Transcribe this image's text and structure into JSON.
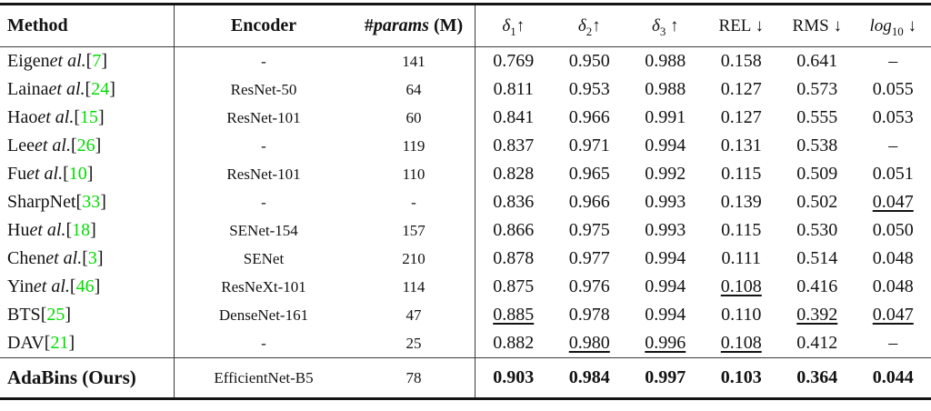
{
  "punct": {
    "open": "[",
    "close": "]"
  },
  "colors": {
    "citation_green": "#00dd00",
    "text": "#121212",
    "rule": "#141414"
  },
  "header": {
    "method": "Method",
    "encoder": "Encoder",
    "params_hash": "#",
    "params_word": "params",
    "params_unit": "(M)",
    "delta_sym": "δ",
    "delta_subs": [
      "1",
      "2",
      "3"
    ],
    "up_arrow": "↑",
    "down_arrow": "↓",
    "rel": "REL",
    "rms": "RMS",
    "log_word": "log",
    "log_sub": "10"
  },
  "rows": [
    {
      "method": {
        "prefix": "Eigen",
        "etal": "et al.",
        "cite": "7"
      },
      "encoder": "-",
      "params": "141",
      "d1": "0.769",
      "d2": "0.950",
      "d3": "0.988",
      "rel": "0.158",
      "rms": "0.641",
      "log10": "–"
    },
    {
      "method": {
        "prefix": "Laina",
        "etal": "et al.",
        "cite": "24"
      },
      "encoder": "ResNet-50",
      "params": "64",
      "d1": "0.811",
      "d2": "0.953",
      "d3": "0.988",
      "rel": "0.127",
      "rms": "0.573",
      "log10": "0.055"
    },
    {
      "method": {
        "prefix": "Hao",
        "etal": "et al.",
        "cite": "15"
      },
      "encoder": "ResNet-101",
      "params": "60",
      "d1": "0.841",
      "d2": "0.966",
      "d3": "0.991",
      "rel": "0.127",
      "rms": "0.555",
      "log10": "0.053"
    },
    {
      "method": {
        "prefix": "Lee",
        "etal": "et al.",
        "cite": "26"
      },
      "encoder": "-",
      "params": "119",
      "d1": "0.837",
      "d2": "0.971",
      "d3": "0.994",
      "rel": "0.131",
      "rms": "0.538",
      "log10": "–"
    },
    {
      "method": {
        "prefix": "Fu",
        "etal": "et al.",
        "cite": "10"
      },
      "encoder": "ResNet-101",
      "params": "110",
      "d1": "0.828",
      "d2": "0.965",
      "d3": "0.992",
      "rel": "0.115",
      "rms": "0.509",
      "log10": "0.051"
    },
    {
      "method": {
        "prefix": "SharpNet",
        "etal": "",
        "cite": "33"
      },
      "encoder": "-",
      "params": "-",
      "d1": "0.836",
      "d2": "0.966",
      "d3": "0.993",
      "rel": "0.139",
      "rms": "0.502",
      "log10": "0.047"
    },
    {
      "method": {
        "prefix": "Hu",
        "etal": "et al.",
        "cite": "18"
      },
      "encoder": "SENet-154",
      "params": "157",
      "d1": "0.866",
      "d2": "0.975",
      "d3": "0.993",
      "rel": "0.115",
      "rms": "0.530",
      "log10": "0.050"
    },
    {
      "method": {
        "prefix": "Chen",
        "etal": "et al.",
        "cite": "3"
      },
      "encoder": "SENet",
      "params": "210",
      "d1": "0.878",
      "d2": "0.977",
      "d3": "0.994",
      "rel": "0.111",
      "rms": "0.514",
      "log10": "0.048"
    },
    {
      "method": {
        "prefix": "Yin",
        "etal": "et al.",
        "cite": "46"
      },
      "encoder": "ResNeXt-101",
      "params": "114",
      "d1": "0.875",
      "d2": "0.976",
      "d3": "0.994",
      "rel": "0.108",
      "rms": "0.416",
      "log10": "0.048"
    },
    {
      "method": {
        "prefix": "BTS",
        "etal": "",
        "cite": "25"
      },
      "encoder": "DenseNet-161",
      "params": "47",
      "d1": "0.885",
      "d2": "0.978",
      "d3": "0.994",
      "rel": "0.110",
      "rms": "0.392",
      "log10": "0.047"
    },
    {
      "method": {
        "prefix": "DAV",
        "etal": "",
        "cite": "21"
      },
      "encoder": "-",
      "params": "25",
      "d1": "0.882",
      "d2": "0.980",
      "d3": "0.996",
      "rel": "0.108",
      "rms": "0.412",
      "log10": "–"
    }
  ],
  "final_row": {
    "method": "AdaBins (Ours)",
    "encoder": "EfficientNet-B5",
    "params": "78",
    "d1": "0.903",
    "d2": "0.984",
    "d3": "0.997",
    "rel": "0.103",
    "rms": "0.364",
    "log10": "0.044"
  }
}
